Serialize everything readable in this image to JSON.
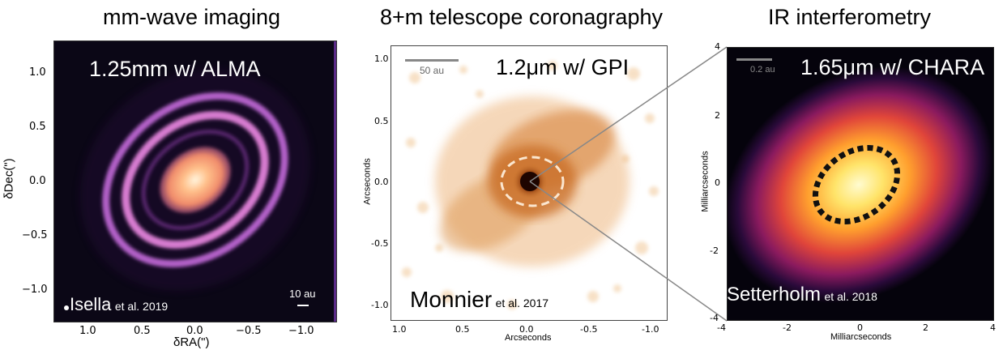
{
  "panels": [
    {
      "title": "mm-wave imaging",
      "overlay_title": "1.25mm w/ ALMA",
      "citation_author": "Isella",
      "citation_rest": "et al. 2019",
      "scalebar_label": "10 au",
      "xlabel": "δRA(\")",
      "ylabel": "δDec(\")",
      "x_ticks": [
        "1.0",
        "0.5",
        "0.0",
        "−0.5",
        "−1.0"
      ],
      "y_ticks": [
        "1.0",
        "0.5",
        "0.0",
        "−0.5",
        "−1.0"
      ]
    },
    {
      "title": "8+m telescope coronagraphy",
      "overlay_title": "1.2μm w/ GPI",
      "citation_author": "Monnier",
      "citation_rest": "et al. 2017",
      "scalebar_label": "50 au",
      "xlabel": "Arcseconds",
      "ylabel": "Arcseconds",
      "x_ticks": [
        "1.0",
        "0.5",
        "0.0",
        "-0.5",
        "-1.0"
      ],
      "y_ticks": [
        "1.0",
        "0.5",
        "0.0",
        "-0.5",
        "-1.0"
      ]
    },
    {
      "title": "IR interferometry",
      "overlay_title": "1.65μm w/ CHARA",
      "citation_author": "Setterholm",
      "citation_rest": "et al. 2018",
      "scalebar_label": "0.2 au",
      "xlabel": "Milliarcseconds",
      "ylabel": "Milliarcseconds",
      "x_ticks": [
        "-4",
        "-2",
        "0",
        "2",
        "4"
      ],
      "y_ticks": [
        "4",
        "2",
        "0",
        "-2",
        "-4"
      ]
    }
  ]
}
